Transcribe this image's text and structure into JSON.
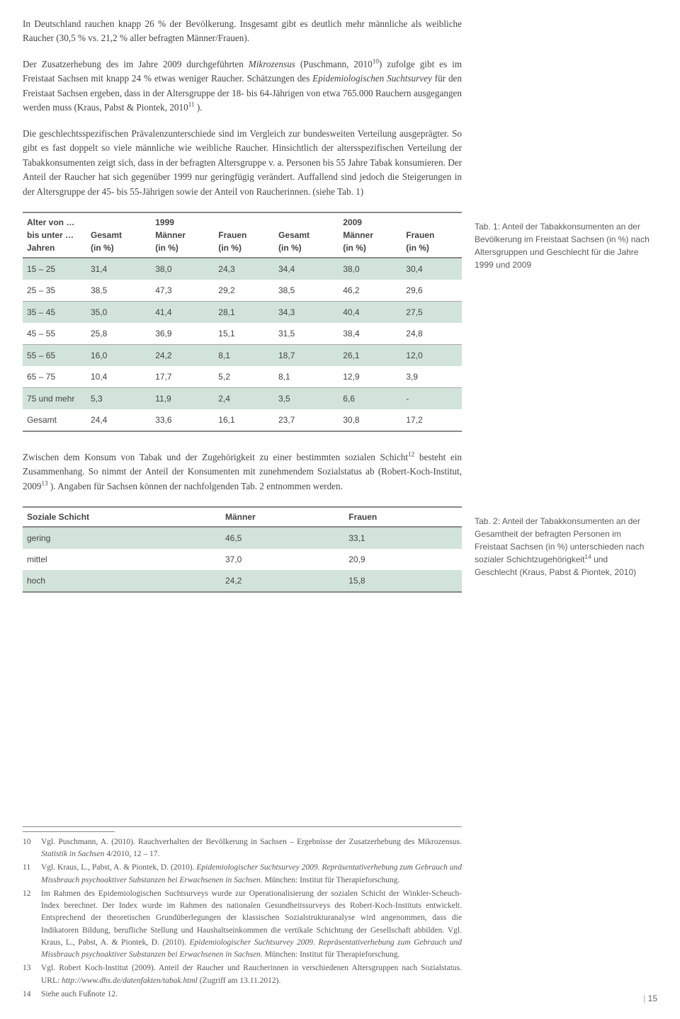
{
  "paragraphs": {
    "p1": "In Deutschland rauchen knapp 26 % der Bevölkerung. Insgesamt gibt es deutlich mehr männliche als weibliche Raucher (30,5 % vs. 21,2 % aller befragten Männer/Frauen).",
    "p2_a": "Der Zusatzerhebung des im Jahre 2009 durchgeführten ",
    "p2_i1": "Mikrozensus",
    "p2_b": " (Puschmann, 2010",
    "p2_sup1": "10",
    "p2_c": ") zufolge gibt es im Freistaat Sachsen mit knapp 24 % etwas weniger Raucher. Schätzungen des ",
    "p2_i2": "Epidemiologischen Suchtsurvey",
    "p2_d": " für den Freistaat Sachsen ergeben, dass in der Altersgruppe der 18- bis 64-Jährigen von etwa 765.000 Rauchern ausgegangen werden muss (Kraus, Pabst & Piontek, 2010",
    "p2_sup2": "11",
    "p2_e": " ).",
    "p3": "Die geschlechtsspezifischen Prävalenzunterschiede sind im Vergleich zur bundesweiten Verteilung ausgeprägter. So gibt es fast doppelt so viele männliche wie weibliche Raucher. Hinsichtlich der altersspezifischen Verteilung der Tabakkonsumenten zeigt sich, dass in der befragten Altersgruppe v. a. Personen bis 55 Jahre Tabak konsumieren. Der Anteil der Raucher hat sich gegenüber 1999 nur geringfügig verändert. Auffallend sind jedoch die Steigerungen in der Altersgruppe der 45- bis 55-Jährigen sowie der Anteil von Raucherinnen. (siehe Tab. 1)",
    "p4_a": "Zwischen dem Konsum von Tabak und der Zugehörigkeit zu einer bestimmten sozialen Schicht",
    "p4_sup1": "12",
    "p4_b": " besteht ein Zusammenhang. So nimmt der Anteil der Konsumenten mit zunehmendem Sozialstatus ab (Robert-Koch-Institut, 2009",
    "p4_sup2": "13",
    "p4_c": " ). Angaben für Sachsen können der nachfolgenden Tab. 2 entnommen werden."
  },
  "table1": {
    "caption": "Tab. 1: Anteil der Tabakkonsumenten an der Bevölkerung im Freistaat Sachsen (in %) nach Altersgruppen und Geschlecht für die Jahre 1999 und 2009",
    "head": {
      "age_l1": "Alter von …",
      "age_l2": "bis unter …",
      "age_l3": "Jahren",
      "y1999": "1999",
      "y2009": "2009",
      "gesamt": "Gesamt",
      "maenner": "Männer",
      "frauen": "Frauen",
      "inpct": "(in %)"
    },
    "rows": [
      {
        "age": "15 – 25",
        "g1": "31,4",
        "m1": "38,0",
        "f1": "24,3",
        "g2": "34,4",
        "m2": "38,0",
        "f2": "30,4",
        "shaded": true
      },
      {
        "age": "25 – 35",
        "g1": "38,5",
        "m1": "47,3",
        "f1": "29,2",
        "g2": "38,5",
        "m2": "46,2",
        "f2": "29,6",
        "shaded": false
      },
      {
        "age": "35 – 45",
        "g1": "35,0",
        "m1": "41,4",
        "f1": "28,1",
        "g2": "34,3",
        "m2": "40,4",
        "f2": "27,5",
        "shaded": true
      },
      {
        "age": "45 – 55",
        "g1": "25,8",
        "m1": "36,9",
        "f1": "15,1",
        "g2": "31,5",
        "m2": "38,4",
        "f2": "24,8",
        "shaded": false
      },
      {
        "age": "55 – 65",
        "g1": "16,0",
        "m1": "24,2",
        "f1": "8,1",
        "g2": "18,7",
        "m2": "26,1",
        "f2": "12,0",
        "shaded": true
      },
      {
        "age": "65 – 75",
        "g1": "10,4",
        "m1": "17,7",
        "f1": "5,2",
        "g2": "8,1",
        "m2": "12,9",
        "f2": "3,9",
        "shaded": false
      },
      {
        "age": "75 und mehr",
        "g1": "5,3",
        "m1": "11,9",
        "f1": "2,4",
        "g2": "3,5",
        "m2": "6,6",
        "f2": "-",
        "shaded": true
      },
      {
        "age": "Gesamt",
        "g1": "24,4",
        "m1": "33,6",
        "f1": "16,1",
        "g2": "23,7",
        "m2": "30,8",
        "f2": "17,2",
        "shaded": false
      }
    ]
  },
  "table2": {
    "caption_a": "Tab. 2: Anteil der Tabakkonsumenten an der Gesamtheit der befragten Personen im Freistaat Sachsen (in %) unterschieden nach sozialer Schichtzugehörigkeit",
    "caption_sup": "14",
    "caption_b": " und Geschlecht (Kraus, Pabst & Piontek, 2010)",
    "head": {
      "schicht": "Soziale Schicht",
      "maenner": "Männer",
      "frauen": "Frauen"
    },
    "rows": [
      {
        "s": "gering",
        "m": "46,5",
        "f": "33,1",
        "shaded": true
      },
      {
        "s": "mittel",
        "m": "37,0",
        "f": "20,9",
        "shaded": false
      },
      {
        "s": "hoch",
        "m": "24,2",
        "f": "15,8",
        "shaded": true
      }
    ]
  },
  "footnotes": [
    {
      "n": "10",
      "t_a": "Vgl. Puschmann, A. (2010). Rauchverhalten der Bevölkerung in Sachsen – Ergebnisse der Zusatzerhebung des Mikrozensus. ",
      "t_i": "Statistik in Sachsen",
      "t_b": " 4/2010, 12 – 17."
    },
    {
      "n": "11",
      "t_a": "Vgl. Kraus, L., Pabst, A. & Piontek, D. (2010). ",
      "t_i": "Epidemiologischer Suchtsurvey 2009. Repräsentativerhebung zum Gebrauch und Missbrauch psychoaktiver Substanzen bei Erwachsenen in Sachsen.",
      "t_b": " München: Institut für Therapieforschung."
    },
    {
      "n": "12",
      "t_a": "Im Rahmen des Epidemiologischen Suchtsurveys wurde zur Operationalisierung der sozialen Schicht der Winkler-Scheuch-Index berechnet. Der Index wurde im Rahmen des nationalen Gesundheitssurveys des Robert-Koch-Instituts entwickelt. Entsprechend der theoretischen Grundüberlegungen der klassischen Sozialstrukturanalyse wird angenommen, dass die Indikatoren Bildung, berufliche Stellung und Haushaltseinkommen die vertikale Schichtung der Gesellschaft abbilden. Vgl. Kraus, L., Pabst, A. & Piontek, D. (2010). ",
      "t_i": "Epidemiologischer Suchtsurvey 2009. Repräsentativerhebung zum Gebrauch und Missbrauch psychoaktiver Substanzen bei Erwachsenen in Sachsen.",
      "t_b": " München: Institut für Therapieforschung."
    },
    {
      "n": "13",
      "t_a": "Vgl. Robert Koch-Institut (2009). Anteil der Raucher und Raucherinnen in verschiedenen Altersgruppen nach Sozialstatus. URL: ",
      "t_i": "http://www.dhs.de/datenfakten/tabak.html",
      "t_b": " (Zugriff am 13.11.2012)."
    },
    {
      "n": "14",
      "t_a": "Siehe auch Fußnote 12.",
      "t_i": "",
      "t_b": ""
    }
  ],
  "page_number": "15"
}
